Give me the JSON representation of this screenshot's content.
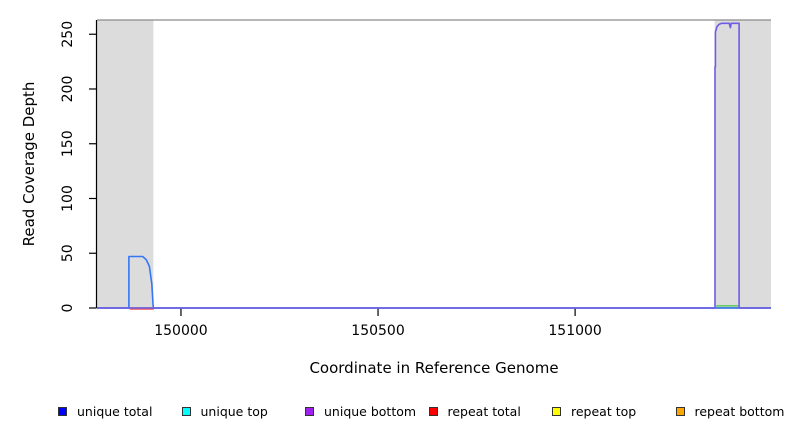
{
  "figure": {
    "background": "#ffffff"
  },
  "chart_data": {
    "type": "line",
    "title": "",
    "xlabel": "Coordinate in Reference Genome",
    "ylabel": "Read Coverage Depth",
    "xlim": [
      149787,
      151497
    ],
    "ylim": [
      0,
      263
    ],
    "xticks": [
      150000,
      150500,
      151000
    ],
    "yticks": [
      0,
      50,
      100,
      150,
      200,
      250
    ],
    "grid": false,
    "legend_position": "bottom",
    "frame_top_color": "#8a8a8a",
    "axis_color": "#000000",
    "shaded_regions": [
      {
        "name": "repeat-region-left",
        "x0": 149787,
        "x1": 149930,
        "color": "#dcdcdc"
      },
      {
        "name": "repeat-region-right",
        "x0": 151354,
        "x1": 151497,
        "color": "#dcdcdc"
      }
    ],
    "series": [
      {
        "name": "unique total (left peak)",
        "color": "#3377f5",
        "points": [
          [
            149787,
            0
          ],
          [
            149868,
            0
          ],
          [
            149868,
            47
          ],
          [
            149903,
            47
          ],
          [
            149912,
            44
          ],
          [
            149920,
            38
          ],
          [
            149926,
            22
          ],
          [
            149929,
            4
          ],
          [
            149930,
            0
          ],
          [
            151497,
            0
          ]
        ]
      },
      {
        "name": "unique bottom (right peak / baseline)",
        "color": "#6e5ce6",
        "points": [
          [
            149787,
            0
          ],
          [
            151355,
            0
          ],
          [
            151355,
            220
          ],
          [
            151356,
            220
          ],
          [
            151356,
            252
          ],
          [
            151360,
            257
          ],
          [
            151365,
            259
          ],
          [
            151372,
            260
          ],
          [
            151391,
            260
          ],
          [
            151394,
            256
          ],
          [
            151396,
            260
          ],
          [
            151416,
            260
          ],
          [
            151416,
            0
          ],
          [
            151497,
            0
          ]
        ]
      },
      {
        "name": "repeat total (under left peak)",
        "color": "#f05555",
        "points": [
          [
            149870,
            1
          ],
          [
            149931,
            1
          ]
        ]
      },
      {
        "name": "repeat coverage (green, base of right peak)",
        "color": "#66cc66",
        "points": [
          [
            151358,
            2
          ],
          [
            151414,
            2
          ]
        ]
      }
    ],
    "legend": [
      {
        "label": "unique total",
        "color": "#0000ff"
      },
      {
        "label": "unique top",
        "color": "#00ffff"
      },
      {
        "label": "unique bottom",
        "color": "#a020f0"
      },
      {
        "label": "repeat total",
        "color": "#ff0000"
      },
      {
        "label": "repeat top",
        "color": "#ffff00"
      },
      {
        "label": "repeat bottom",
        "color": "#ffa500"
      }
    ]
  }
}
